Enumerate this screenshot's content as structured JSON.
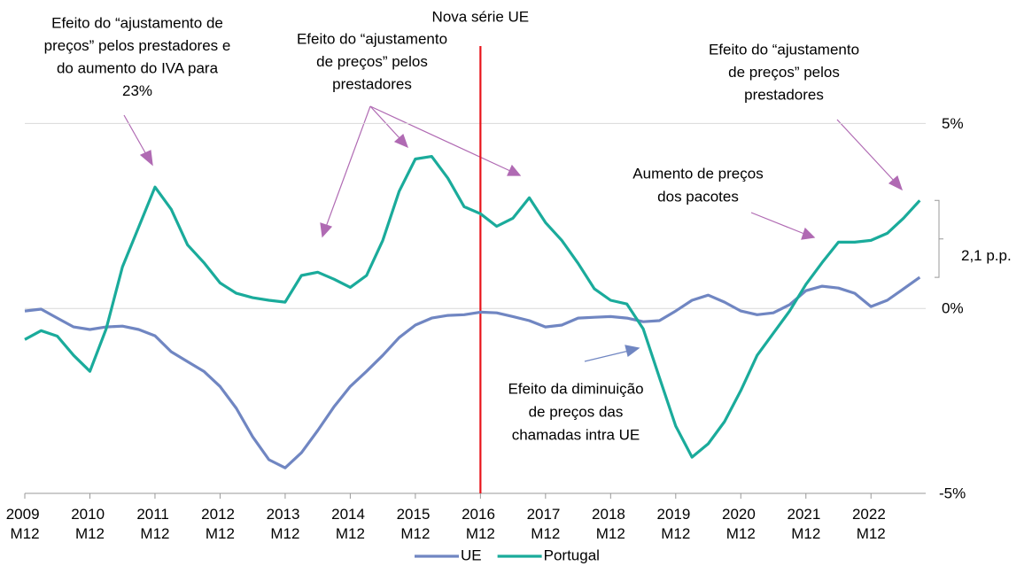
{
  "chart_data": {
    "type": "line",
    "categories": [
      "2009 M12",
      null,
      null,
      null,
      "2010 M12",
      null,
      null,
      null,
      "2011 M12",
      null,
      null,
      null,
      "2012 M12",
      null,
      null,
      null,
      "2013 M12",
      null,
      null,
      null,
      "2014 M12",
      null,
      null,
      null,
      "2015 M12",
      null,
      null,
      null,
      "2016 M12",
      null,
      null,
      null,
      "2017 M12",
      null,
      null,
      null,
      "2018 M12",
      null,
      null,
      null,
      "2019 M12",
      null,
      null,
      null,
      "2020 M12",
      null,
      null,
      null,
      "2021 M12",
      null,
      null,
      null,
      "2022 M12",
      null,
      null,
      null
    ],
    "series": [
      {
        "name": "UE",
        "color": "#7086c2",
        "values": [
          -0.07,
          -0.02,
          -0.26,
          -0.5,
          -0.57,
          -0.5,
          -0.48,
          -0.57,
          -0.74,
          -1.17,
          -1.44,
          -1.7,
          -2.11,
          -2.7,
          -3.47,
          -4.09,
          -4.31,
          -3.9,
          -3.3,
          -2.66,
          -2.11,
          -1.7,
          -1.27,
          -0.79,
          -0.45,
          -0.26,
          -0.19,
          -0.17,
          -0.1,
          -0.12,
          -0.22,
          -0.33,
          -0.5,
          -0.45,
          -0.26,
          -0.24,
          -0.22,
          -0.26,
          -0.36,
          -0.33,
          -0.07,
          0.22,
          0.36,
          0.17,
          -0.07,
          -0.17,
          -0.12,
          0.1,
          0.48,
          0.6,
          0.55,
          0.41,
          0.05,
          0.22,
          0.53,
          0.84
        ]
      },
      {
        "name": "Portugal",
        "color": "#1aab9b",
        "values": [
          -0.84,
          -0.6,
          -0.75,
          -1.27,
          -1.7,
          -0.55,
          1.12,
          2.2,
          3.28,
          2.68,
          1.72,
          1.24,
          0.69,
          0.41,
          0.29,
          0.22,
          0.17,
          0.89,
          0.98,
          0.79,
          0.57,
          0.89,
          1.84,
          3.16,
          4.04,
          4.11,
          3.52,
          2.75,
          2.56,
          2.22,
          2.44,
          2.99,
          2.32,
          1.84,
          1.22,
          0.53,
          0.22,
          0.12,
          -0.55,
          -1.87,
          -3.18,
          -4.02,
          -3.66,
          -3.06,
          -2.22,
          -1.27,
          -0.67,
          -0.07,
          0.65,
          1.24,
          1.79,
          1.79,
          1.84,
          2.03,
          2.44,
          2.92
        ]
      }
    ],
    "ylim": [
      -5,
      7.5
    ],
    "yticks": [
      {
        "value": 5,
        "label": "5%"
      },
      {
        "value": 0,
        "label": "0%"
      },
      {
        "value": -5,
        "label": "-5%"
      }
    ],
    "grid": true,
    "legend": "bottom",
    "vline": {
      "at": "2016 M12",
      "label": "Nova série UE",
      "color": "#e8141b"
    },
    "bracket_label": "2,1 p.p.",
    "annotations": [
      {
        "lines": [
          "Efeito do “ajustamento de",
          "preços” pelos prestadores e",
          "do aumento do IVA para",
          "23%"
        ],
        "color": "#b06ab3"
      },
      {
        "lines": [
          "Efeito do “ajustamento",
          "de preços” pelos",
          "prestadores"
        ],
        "color": "#b06ab3"
      },
      {
        "lines": [
          "Efeito do “ajustamento",
          "de preços” pelos",
          "prestadores"
        ],
        "color": "#b06ab3"
      },
      {
        "lines": [
          "Aumento de preços",
          "dos pacotes"
        ],
        "color": "#b06ab3"
      },
      {
        "lines": [
          "Efeito da diminuição",
          "de preços das",
          "chamadas intra UE"
        ],
        "color": "#7086c2"
      }
    ]
  }
}
